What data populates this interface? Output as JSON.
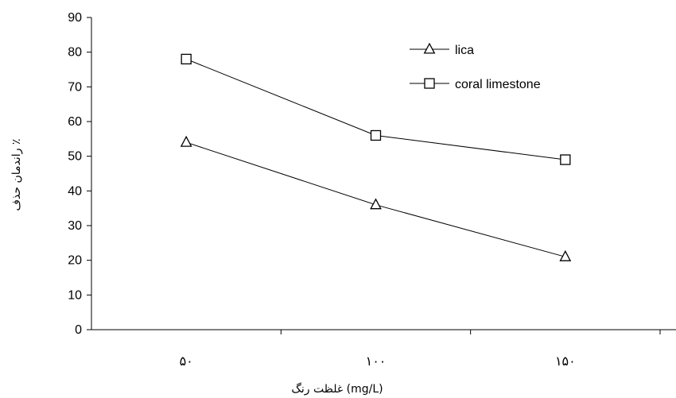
{
  "chart_data": {
    "type": "line",
    "title": "",
    "xlabel": "غلظت رنگ (mg/L)",
    "ylabel": "راندمان حذف ٪",
    "categories": [
      "۵۰",
      "۱۰۰",
      "۱۵۰"
    ],
    "ylim": [
      0,
      90
    ],
    "yticks": [
      0,
      10,
      20,
      30,
      40,
      50,
      60,
      70,
      80,
      90
    ],
    "grid": false,
    "legend_position": "top-right",
    "series": [
      {
        "name": "lica",
        "marker": "triangle",
        "values": [
          54,
          36,
          21
        ]
      },
      {
        "name": "coral limestone",
        "marker": "square",
        "values": [
          78,
          56,
          49
        ]
      }
    ]
  }
}
